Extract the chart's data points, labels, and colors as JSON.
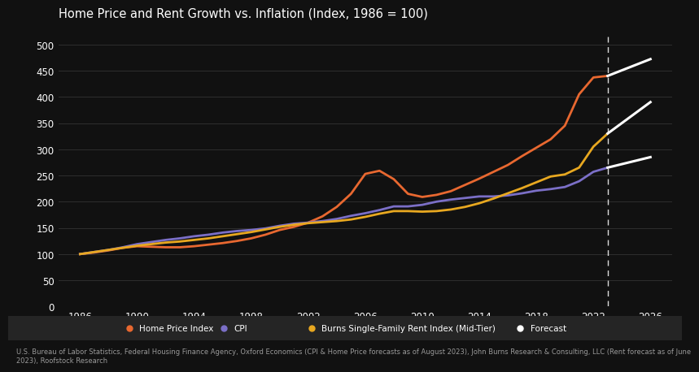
{
  "title": "Home Price and Rent Growth vs. Inflation (Index, 1986 = 100)",
  "bg_color": "#111111",
  "plot_bg_color": "#111111",
  "text_color": "#ffffff",
  "grid_color": "#2e2e2e",
  "ylim": [
    0,
    520
  ],
  "yticks": [
    0,
    50,
    100,
    150,
    200,
    250,
    300,
    350,
    400,
    450,
    500
  ],
  "forecast_line_x": 2023,
  "footnote": "U.S. Bureau of Labor Statistics, Federal Housing Finance Agency, Oxford Economics (CPI & Home Price forecasts as of August 2023), John Burns Research & Consulting, LLC (Rent forecast as of June\n2023), Roofstock Research",
  "home_price_color": "#e86830",
  "cpi_color": "#7b6fc7",
  "rent_color": "#e8a820",
  "forecast_color": "#ffffff",
  "home_price_years": [
    1986,
    1987,
    1988,
    1989,
    1990,
    1991,
    1992,
    1993,
    1994,
    1995,
    1996,
    1997,
    1998,
    1999,
    2000,
    2001,
    2002,
    2003,
    2004,
    2005,
    2006,
    2007,
    2008,
    2009,
    2010,
    2011,
    2012,
    2013,
    2014,
    2015,
    2016,
    2017,
    2018,
    2019,
    2020,
    2021,
    2022,
    2023
  ],
  "home_price_values": [
    100,
    103,
    107,
    112,
    115,
    114,
    113,
    113,
    115,
    118,
    121,
    125,
    130,
    137,
    146,
    152,
    160,
    172,
    190,
    215,
    253,
    259,
    243,
    215,
    209,
    213,
    220,
    232,
    244,
    257,
    270,
    287,
    303,
    319,
    345,
    405,
    437,
    440
  ],
  "cpi_years": [
    1986,
    1987,
    1988,
    1989,
    1990,
    1991,
    1992,
    1993,
    1994,
    1995,
    1996,
    1997,
    1998,
    1999,
    2000,
    2001,
    2002,
    2003,
    2004,
    2005,
    2006,
    2007,
    2008,
    2009,
    2010,
    2011,
    2012,
    2013,
    2014,
    2015,
    2016,
    2017,
    2018,
    2019,
    2020,
    2021,
    2022,
    2023
  ],
  "cpi_values": [
    100,
    104,
    108,
    113,
    119,
    123,
    127,
    130,
    134,
    137,
    141,
    144,
    146,
    149,
    154,
    158,
    160,
    163,
    167,
    173,
    178,
    184,
    191,
    191,
    194,
    200,
    204,
    207,
    210,
    210,
    212,
    216,
    221,
    224,
    228,
    239,
    257,
    265
  ],
  "rent_years": [
    1986,
    1987,
    1988,
    1989,
    1990,
    1991,
    1992,
    1993,
    1994,
    1995,
    1996,
    1997,
    1998,
    1999,
    2000,
    2001,
    2002,
    2003,
    2004,
    2005,
    2006,
    2007,
    2008,
    2009,
    2010,
    2011,
    2012,
    2013,
    2014,
    2015,
    2016,
    2017,
    2018,
    2019,
    2020,
    2021,
    2022,
    2023
  ],
  "rent_values": [
    100,
    104,
    108,
    112,
    116,
    119,
    122,
    124,
    127,
    130,
    134,
    138,
    142,
    147,
    152,
    156,
    159,
    161,
    163,
    166,
    171,
    177,
    182,
    182,
    181,
    182,
    185,
    190,
    197,
    206,
    216,
    226,
    237,
    248,
    252,
    265,
    305,
    330
  ],
  "home_price_forecast_years": [
    2023,
    2026
  ],
  "home_price_forecast_values": [
    440,
    472
  ],
  "cpi_forecast_years": [
    2023,
    2026
  ],
  "cpi_forecast_values": [
    265,
    285
  ],
  "rent_forecast_years": [
    2023,
    2026
  ],
  "rent_forecast_values": [
    330,
    390
  ],
  "legend_bg_color": "#252525",
  "xlabel": "",
  "xticks": [
    1986,
    1990,
    1994,
    1998,
    2002,
    2006,
    2010,
    2014,
    2018,
    2022,
    2026
  ],
  "xlim_left": 1984.5,
  "xlim_right": 2027.5
}
